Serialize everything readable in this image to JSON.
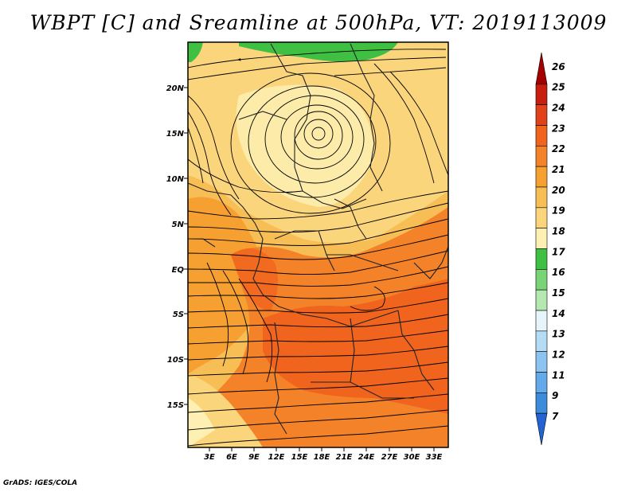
{
  "title": "WBPT [C] and Sreamline at 500hPa, VT: 2019113009",
  "footer": "GrADS: IGES/COLA",
  "map": {
    "lat_labels": [
      "20N",
      "15N",
      "10N",
      "5N",
      "EQ",
      "5S",
      "10S",
      "15S"
    ],
    "lon_labels": [
      "3E",
      "6E",
      "9E",
      "12E",
      "15E",
      "18E",
      "21E",
      "24E",
      "27E",
      "30E",
      "33E"
    ]
  },
  "colorbar": {
    "levels": [
      "26",
      "25",
      "24",
      "23",
      "22",
      "21",
      "20",
      "19",
      "18",
      "17",
      "16",
      "15",
      "14",
      "13",
      "12",
      "11",
      "9",
      "7"
    ],
    "colors": [
      "#a50000",
      "#c81e0e",
      "#e2421a",
      "#f0641e",
      "#f48228",
      "#f7a032",
      "#f7be55",
      "#fbd57c",
      "#fdf0b2",
      "#3fc043",
      "#78d475",
      "#b4e8b0",
      "#e6f5fa",
      "#b4dcf5",
      "#8cc3f0",
      "#64aaeb",
      "#3c8cdc",
      "#2364d2"
    ]
  }
}
